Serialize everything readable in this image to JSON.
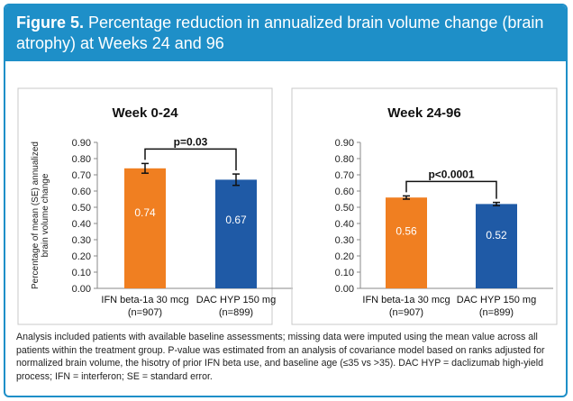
{
  "figure": {
    "label": "Figure 5.",
    "title": "Percentage reduction in annualized brain volume change (brain atrophy) at Weeks 24 and 96"
  },
  "colors": {
    "frame": "#1e8fc8",
    "ifn": "#f07f21",
    "dac": "#1f5aa6"
  },
  "shared_ylabel": "Percentage of mean (SE) annualized brain volume change",
  "chart_data": [
    {
      "type": "bar",
      "title": "Week 0-24",
      "categories": [
        "IFN beta-1a 30 mcg\n(n=907)",
        "DAC HYP 150 mg\n(n=899)"
      ],
      "values": [
        0.74,
        0.67
      ],
      "errors": [
        0.03,
        0.035
      ],
      "value_labels": [
        "0.74",
        "0.67"
      ],
      "colors": [
        "#f07f21",
        "#1f5aa6"
      ],
      "ylabel": "Percentage of mean (SE) annualized brain volume change",
      "ylim": [
        0,
        0.9
      ],
      "yticks": [
        "0.00",
        "0.10",
        "0.20",
        "0.30",
        "0.40",
        "0.50",
        "0.60",
        "0.70",
        "0.80",
        "0.90"
      ],
      "annotation": "p=0.03"
    },
    {
      "type": "bar",
      "title": "Week 24-96",
      "categories": [
        "IFN beta-1a 30 mcg\n(n=907)",
        "DAC HYP 150 mg\n(n=899)"
      ],
      "values": [
        0.56,
        0.52
      ],
      "errors": [
        0.01,
        0.01
      ],
      "value_labels": [
        "0.56",
        "0.52"
      ],
      "colors": [
        "#f07f21",
        "#1f5aa6"
      ],
      "ylabel": "",
      "ylim": [
        0,
        0.9
      ],
      "yticks": [
        "0.00",
        "0.10",
        "0.20",
        "0.30",
        "0.40",
        "0.50",
        "0.60",
        "0.70",
        "0.80",
        "0.90"
      ],
      "annotation": "p<0.0001"
    }
  ],
  "footnote": "Analysis included patients with available baseline assessments; missing data were imputed using the mean value across all patients within the treatment group. P-value was estimated from an analysis of covariance model based on ranks adjusted for normalized brain volume, the hisotry of prior IFN beta use, and baseline age (≤35 vs >35). DAC HYP = daclizumab high-yield process; IFN = interferon; SE = standard error."
}
